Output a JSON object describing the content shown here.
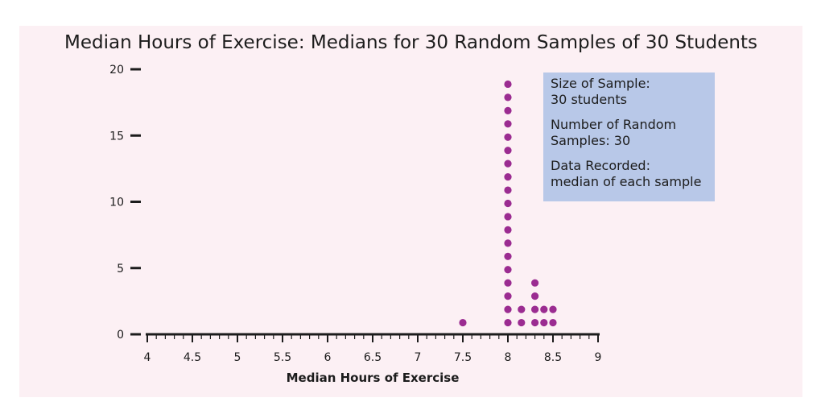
{
  "chart_data": {
    "type": "dot plot",
    "title": "Median Hours of Exercise: Medians for 30 Random Samples of 30 Students",
    "xlabel": "Median Hours of Exercise",
    "ylabel": "",
    "xlim": [
      4,
      9
    ],
    "ylim": [
      0,
      20
    ],
    "x_ticks": [
      "4",
      "4.5",
      "5",
      "5.5",
      "6",
      "6.5",
      "7",
      "7.5",
      "8",
      "8.5",
      "9"
    ],
    "y_ticks": [
      "0",
      "5",
      "10",
      "15",
      "20"
    ],
    "points": [
      {
        "x": 7.5,
        "count": 1
      },
      {
        "x": 8.0,
        "count": 19
      },
      {
        "x": 8.15,
        "count": 2
      },
      {
        "x": 8.3,
        "count": 4
      },
      {
        "x": 8.4,
        "count": 2
      },
      {
        "x": 8.5,
        "count": 2
      }
    ],
    "dot_color": "#9b2c91",
    "grid": false
  },
  "info_box": {
    "lines": [
      [
        "Size of Sample:",
        "30 students"
      ],
      [
        "Number of Random",
        "Samples: 30"
      ],
      [
        "Data Recorded:",
        "median of each sample"
      ]
    ]
  }
}
